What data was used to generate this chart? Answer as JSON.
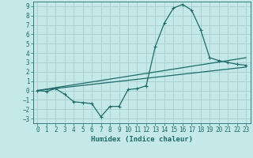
{
  "xlabel": "Humidex (Indice chaleur)",
  "background_color": "#c5e8e8",
  "grid_color": "#a8d0d0",
  "line_color": "#1e6b6b",
  "xlim": [
    -0.5,
    23.5
  ],
  "ylim": [
    -3.5,
    9.5
  ],
  "xticks": [
    0,
    1,
    2,
    3,
    4,
    5,
    6,
    7,
    8,
    9,
    10,
    11,
    12,
    13,
    14,
    15,
    16,
    17,
    18,
    19,
    20,
    21,
    22,
    23
  ],
  "yticks": [
    -3,
    -2,
    -1,
    0,
    1,
    2,
    3,
    4,
    5,
    6,
    7,
    8,
    9
  ],
  "curve1_x": [
    0,
    1,
    2,
    3,
    4,
    5,
    6,
    7,
    8,
    9,
    10,
    11,
    12,
    13,
    14,
    15,
    16,
    17,
    18,
    19,
    20,
    21,
    22,
    23
  ],
  "curve1_y": [
    0.0,
    -0.1,
    0.2,
    -0.4,
    -1.2,
    -1.3,
    -1.4,
    -2.8,
    -1.7,
    -1.7,
    0.1,
    0.2,
    0.5,
    4.7,
    7.2,
    8.8,
    9.2,
    8.6,
    6.5,
    3.5,
    3.2,
    3.0,
    2.8,
    2.7
  ],
  "curve2_x": [
    0,
    23
  ],
  "curve2_y": [
    0.0,
    2.5
  ],
  "curve3_x": [
    0,
    23
  ],
  "curve3_y": [
    0.0,
    3.5
  ],
  "tick_fontsize": 5.5,
  "xlabel_fontsize": 6.5
}
